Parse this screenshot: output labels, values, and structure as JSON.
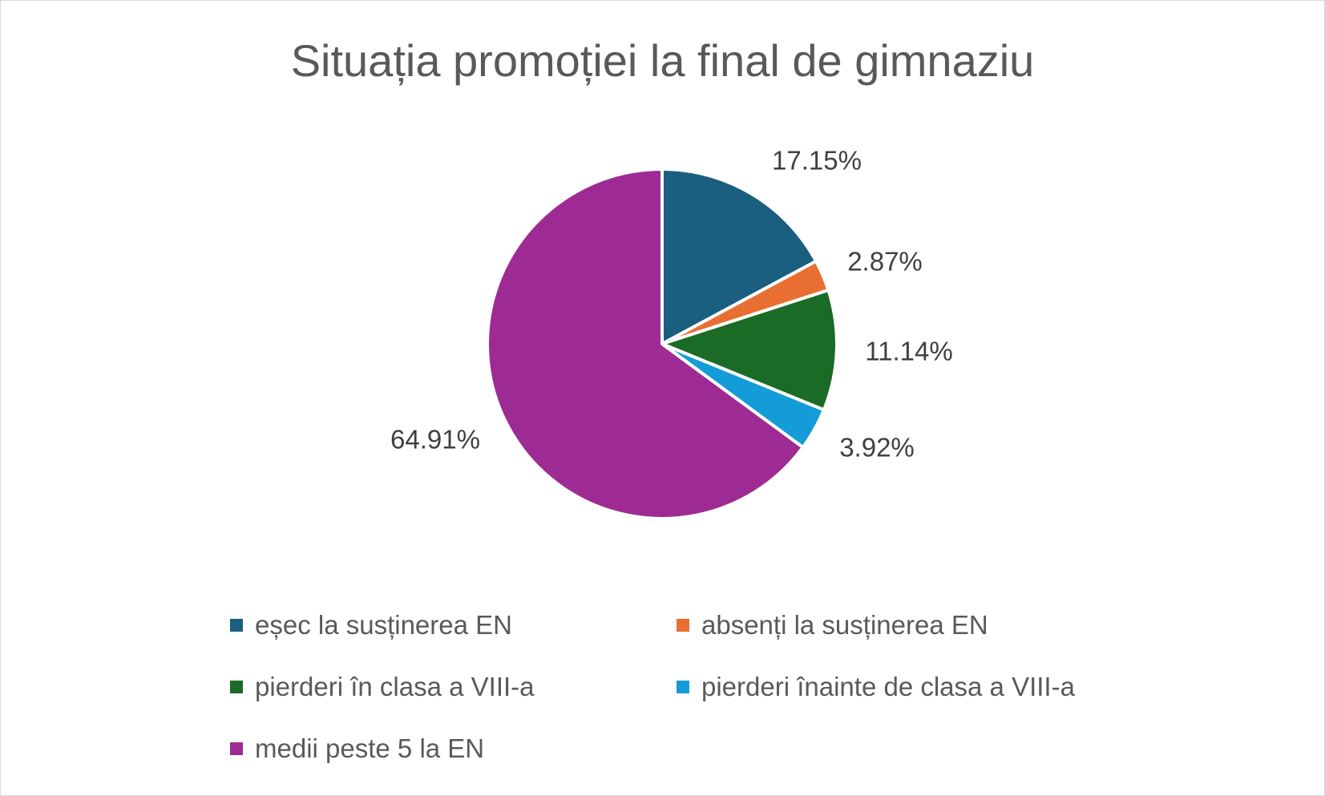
{
  "chart_data": {
    "type": "pie",
    "title": "Situația promoției la final de gimnaziu",
    "legend_position": "bottom",
    "series": [
      {
        "label": "eșec la susținerea EN",
        "value": 17.15,
        "data_label": "17.15%",
        "color": "#1a5e80"
      },
      {
        "label": "absenți la susținerea EN",
        "value": 2.87,
        "data_label": "2.87%",
        "color": "#e86f31"
      },
      {
        "label": "pierderi în clasa a VIII-a",
        "value": 11.14,
        "data_label": "11.14%",
        "color": "#1a6b26"
      },
      {
        "label": "pierderi înainte de clasa a VIII-a",
        "value": 3.92,
        "data_label": "3.92%",
        "color": "#149cd8"
      },
      {
        "label": "medii peste 5 la EN",
        "value": 64.91,
        "data_label": "64.91%",
        "color": "#9e2b93"
      }
    ]
  }
}
